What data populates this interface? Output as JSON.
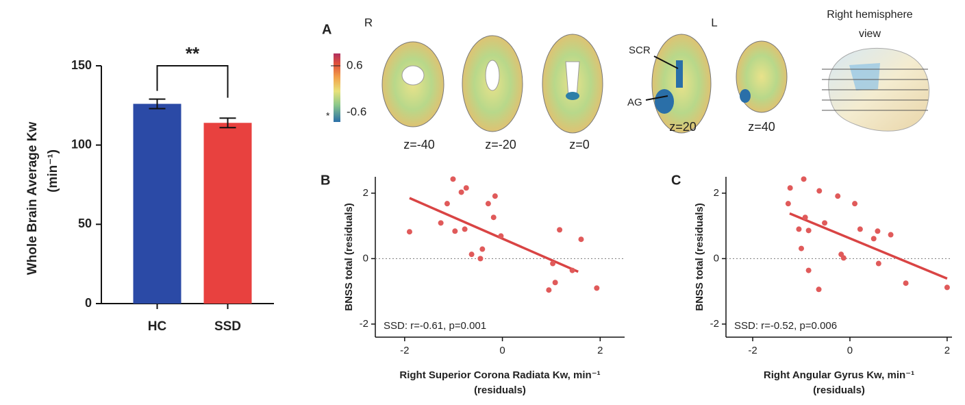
{
  "chart_data": [
    {
      "type": "bar",
      "ylabel": [
        "Whole Brain Average Kw",
        "(min⁻¹)"
      ],
      "categories": [
        "HC",
        "SSD"
      ],
      "values": [
        126,
        114
      ],
      "errors": [
        3,
        3
      ],
      "colors": [
        "#2b4aa6",
        "#e8413f"
      ],
      "ylim": [
        0,
        150
      ],
      "yticks": [
        0,
        50,
        100,
        150
      ],
      "significance": "**"
    },
    {
      "type": "scatter",
      "panel_label": "B",
      "ylabel": "BNSS total (residuals)",
      "xlabel": [
        "Right Superior Corona Radiata Kw, min⁻¹",
        "(residuals)"
      ],
      "annotation": "SSD: r=-0.61, p=0.001",
      "color": "#e05a5a",
      "line_color": "#d94444",
      "x": [
        -1.9,
        -1.01,
        -0.74,
        -0.84,
        -1.13,
        -1.26,
        -0.97,
        -0.77,
        -0.29,
        -0.15,
        -0.18,
        -0.03,
        -0.41,
        -0.63,
        -0.45,
        1.17,
        1.61,
        1.03,
        1.08,
        0.95,
        1.43,
        1.93
      ],
      "y": [
        0.82,
        2.43,
        2.16,
        2.03,
        1.68,
        1.09,
        0.84,
        0.9,
        1.68,
        1.91,
        1.26,
        0.69,
        0.29,
        0.13,
        0.0,
        0.88,
        0.59,
        -0.15,
        -0.73,
        -0.96,
        -0.36,
        -0.9
      ],
      "fit_x": [
        -1.9,
        1.55
      ],
      "fit_y": [
        1.85,
        -0.4
      ],
      "xlim": [
        -2.6,
        2.5
      ],
      "ylim": [
        -2.4,
        2.5
      ],
      "xticks": [
        -2,
        0,
        2
      ],
      "yticks": [
        -2,
        0,
        2
      ],
      "hline": 0
    },
    {
      "type": "scatter",
      "panel_label": "C",
      "ylabel": "BNSS total (residuals)",
      "xlabel": [
        "Right Angular Gyrus Kw, min⁻¹",
        "(residuals)"
      ],
      "annotation": "SSD: r=-0.52, p=0.006",
      "color": "#e05a5a",
      "line_color": "#d94444",
      "x": [
        -1.23,
        -0.95,
        -1.27,
        -0.92,
        -1.05,
        -0.85,
        -0.63,
        -0.25,
        0.1,
        -0.52,
        0.21,
        0.57,
        0.84,
        0.49,
        -1.0,
        -0.18,
        -0.13,
        -0.85,
        0.59,
        -0.64,
        1.15,
        2.0
      ],
      "y": [
        2.16,
        2.43,
        1.68,
        1.26,
        0.9,
        0.86,
        2.07,
        1.91,
        1.68,
        1.09,
        0.9,
        0.84,
        0.73,
        0.61,
        0.31,
        0.13,
        0.02,
        -0.36,
        -0.15,
        -0.94,
        -0.75,
        -0.88
      ],
      "fit_x": [
        -1.24,
        2.0
      ],
      "fit_y": [
        1.38,
        -0.61
      ],
      "xlim": [
        -2.55,
        2.1
      ],
      "ylim": [
        -2.4,
        2.5
      ],
      "xticks": [
        -2,
        0,
        2
      ],
      "yticks": [
        -2,
        0,
        2
      ],
      "hline": 0
    }
  ],
  "brain_panel": {
    "panel_label": "A",
    "left_side": "R",
    "right_side": "L",
    "view_title": [
      "Right hemisphere",
      "view"
    ],
    "colorbar_ticks": [
      0.6,
      -0.6
    ],
    "colorbar_mark": "*",
    "regions": [
      "SCR",
      "AG"
    ],
    "slices": [
      "z=-40",
      "z=-20",
      "z=0",
      "z=20",
      "z=40"
    ]
  }
}
